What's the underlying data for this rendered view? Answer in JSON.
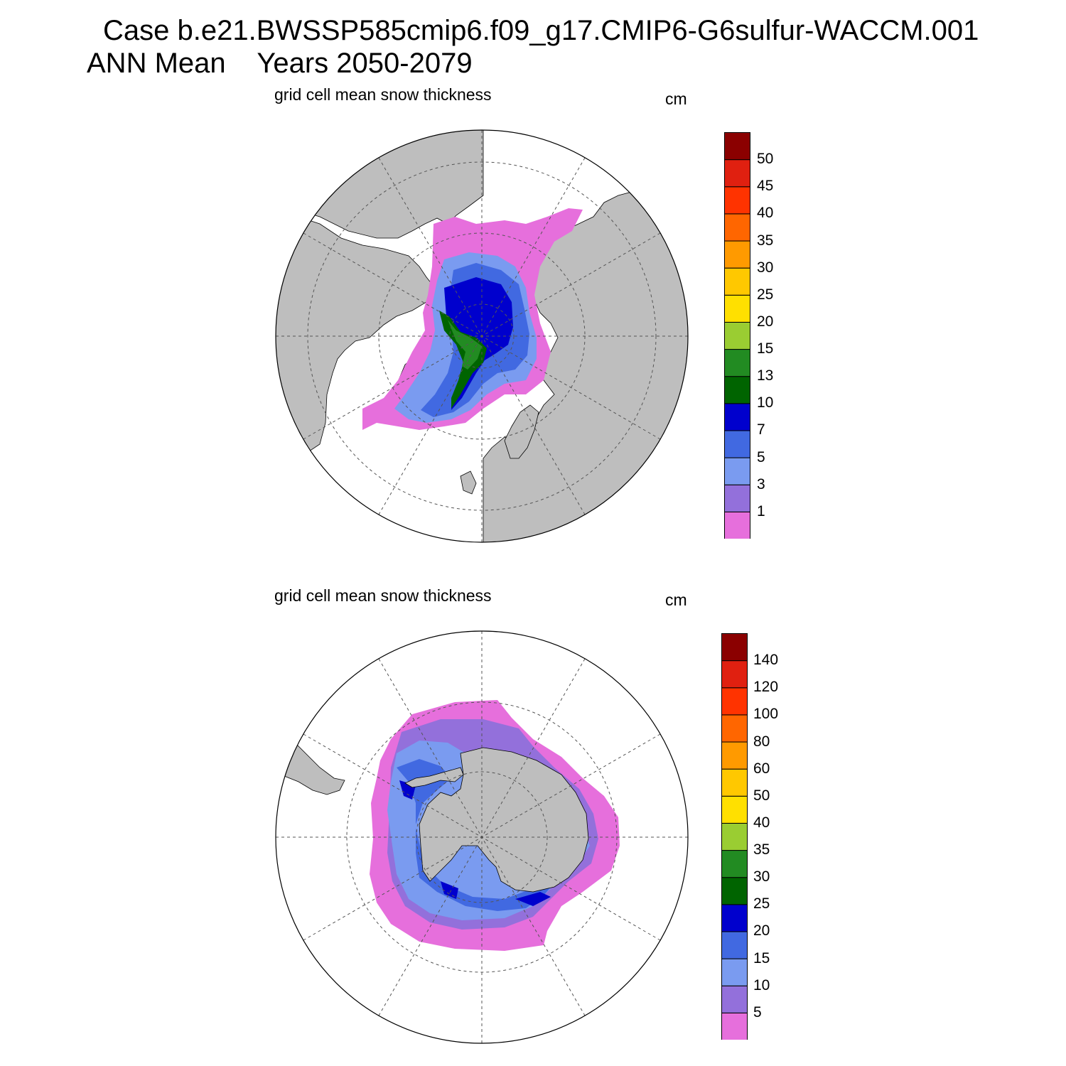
{
  "header": {
    "case_title": "Case b.e21.BWSSP585cmip6.f09_g17.CMIP6-G6sulfur-WACCM.001",
    "period_title": "ANN Mean    Years 2050-2079"
  },
  "colors": {
    "land": "#bebebe",
    "ocean": "#ffffff",
    "scale": [
      "#e66fdc",
      "#9370db",
      "#7a9bf0",
      "#4169e1",
      "#0000cd",
      "#006400",
      "#228b22",
      "#9acd32",
      "#ffe000",
      "#ffc800",
      "#ff9a00",
      "#ff6600",
      "#ff3300",
      "#e02010",
      "#8b0000"
    ]
  },
  "north": {
    "title": "grid cell mean snow thickness",
    "units": "cm",
    "levels": [
      "1",
      "3",
      "5",
      "7",
      "10",
      "13",
      "15",
      "20",
      "25",
      "30",
      "35",
      "40",
      "45",
      "50"
    ]
  },
  "south": {
    "title": "grid cell mean snow thickness",
    "units": "cm",
    "levels": [
      "5",
      "10",
      "15",
      "20",
      "25",
      "30",
      "35",
      "40",
      "50",
      "60",
      "80",
      "100",
      "120",
      "140"
    ]
  }
}
